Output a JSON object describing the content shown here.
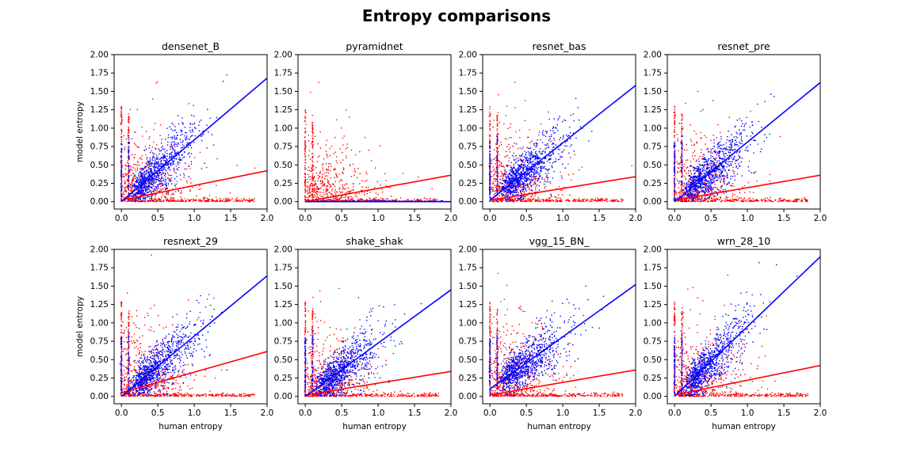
{
  "figure_title": "Entropy comparisons",
  "colors": {
    "series_a": "#0000ff",
    "series_b": "#ff0000",
    "axes": "#000000"
  },
  "chart_data": [
    {
      "type": "scatter",
      "title": "densenet_B",
      "xlabel": "",
      "ylabel": "model entropy",
      "xlim": [
        -0.1,
        2.0
      ],
      "ylim": [
        -0.1,
        2.0
      ],
      "xticks": [
        "0.0",
        "0.5",
        "1.0",
        "1.5",
        "2.0"
      ],
      "yticks": [
        "0.00",
        "0.25",
        "0.50",
        "0.75",
        "1.00",
        "1.25",
        "1.50",
        "1.75",
        "2.00"
      ],
      "series": [
        {
          "color": "#0000ff",
          "fit_line": {
            "x": [
              0.0,
              2.0
            ],
            "y": [
              0.0,
              1.68
            ]
          }
        },
        {
          "color": "#ff0000",
          "fit_line": {
            "x": [
              0.0,
              2.0
            ],
            "y": [
              0.02,
              0.42
            ]
          }
        }
      ]
    },
    {
      "type": "scatter",
      "title": "pyramidnet",
      "xlabel": "",
      "ylabel": "",
      "xlim": [
        -0.1,
        2.0
      ],
      "ylim": [
        -0.1,
        2.0
      ],
      "xticks": [
        "0.0",
        "0.5",
        "1.0",
        "1.5",
        "2.0"
      ],
      "yticks": [
        "0.00",
        "0.25",
        "0.50",
        "0.75",
        "1.00",
        "1.25",
        "1.50",
        "1.75",
        "2.00"
      ],
      "series": [
        {
          "color": "#0000ff",
          "fit_line": {
            "x": [
              0.0,
              2.0
            ],
            "y": [
              0.0,
              0.0
            ]
          }
        },
        {
          "color": "#ff0000",
          "fit_line": {
            "x": [
              0.0,
              2.0
            ],
            "y": [
              0.0,
              0.36
            ]
          }
        }
      ]
    },
    {
      "type": "scatter",
      "title": "resnet_bas",
      "xlabel": "",
      "ylabel": "",
      "xlim": [
        -0.1,
        2.0
      ],
      "ylim": [
        -0.1,
        2.0
      ],
      "xticks": [
        "0.0",
        "0.5",
        "1.0",
        "1.5",
        "2.0"
      ],
      "yticks": [
        "0.00",
        "0.25",
        "0.50",
        "0.75",
        "1.00",
        "1.25",
        "1.50",
        "1.75",
        "2.00"
      ],
      "series": [
        {
          "color": "#0000ff",
          "fit_line": {
            "x": [
              0.0,
              2.0
            ],
            "y": [
              0.02,
              1.58
            ]
          }
        },
        {
          "color": "#ff0000",
          "fit_line": {
            "x": [
              0.0,
              2.0
            ],
            "y": [
              0.02,
              0.34
            ]
          }
        }
      ]
    },
    {
      "type": "scatter",
      "title": "resnet_pre",
      "xlabel": "",
      "ylabel": "",
      "xlim": [
        -0.1,
        2.0
      ],
      "ylim": [
        -0.1,
        2.0
      ],
      "xticks": [
        "0.0",
        "0.5",
        "1.0",
        "1.5",
        "2.0"
      ],
      "yticks": [
        "0.00",
        "0.25",
        "0.50",
        "0.75",
        "1.00",
        "1.25",
        "1.50",
        "1.75",
        "2.00"
      ],
      "series": [
        {
          "color": "#0000ff",
          "fit_line": {
            "x": [
              0.0,
              2.0
            ],
            "y": [
              0.0,
              1.62
            ]
          }
        },
        {
          "color": "#ff0000",
          "fit_line": {
            "x": [
              0.0,
              2.0
            ],
            "y": [
              0.02,
              0.36
            ]
          }
        }
      ]
    },
    {
      "type": "scatter",
      "title": "resnext_29",
      "xlabel": "human entropy",
      "ylabel": "model entropy",
      "xlim": [
        -0.1,
        2.0
      ],
      "ylim": [
        -0.1,
        2.0
      ],
      "xticks": [
        "0.0",
        "0.5",
        "1.0",
        "1.5",
        "2.0"
      ],
      "yticks": [
        "0.00",
        "0.25",
        "0.50",
        "0.75",
        "1.00",
        "1.25",
        "1.50",
        "1.75",
        "2.00"
      ],
      "series": [
        {
          "color": "#0000ff",
          "fit_line": {
            "x": [
              0.0,
              2.0
            ],
            "y": [
              0.0,
              1.64
            ]
          }
        },
        {
          "color": "#ff0000",
          "fit_line": {
            "x": [
              0.0,
              2.0
            ],
            "y": [
              0.05,
              0.61
            ]
          }
        }
      ]
    },
    {
      "type": "scatter",
      "title": "shake_shak",
      "xlabel": "human entropy",
      "ylabel": "",
      "xlim": [
        -0.1,
        2.0
      ],
      "ylim": [
        -0.1,
        2.0
      ],
      "xticks": [
        "0.0",
        "0.5",
        "1.0",
        "1.5",
        "2.0"
      ],
      "yticks": [
        "0.00",
        "0.25",
        "0.50",
        "0.75",
        "1.00",
        "1.25",
        "1.50",
        "1.75",
        "2.00"
      ],
      "series": [
        {
          "color": "#0000ff",
          "fit_line": {
            "x": [
              0.0,
              2.0
            ],
            "y": [
              0.0,
              1.45
            ]
          }
        },
        {
          "color": "#ff0000",
          "fit_line": {
            "x": [
              0.0,
              2.0
            ],
            "y": [
              0.02,
              0.34
            ]
          }
        }
      ]
    },
    {
      "type": "scatter",
      "title": "vgg_15_BN_",
      "xlabel": "human entropy",
      "ylabel": "",
      "xlim": [
        -0.1,
        2.0
      ],
      "ylim": [
        -0.1,
        2.0
      ],
      "xticks": [
        "0.0",
        "0.5",
        "1.0",
        "1.5",
        "2.0"
      ],
      "yticks": [
        "0.00",
        "0.25",
        "0.50",
        "0.75",
        "1.00",
        "1.25",
        "1.50",
        "1.75",
        "2.00"
      ],
      "series": [
        {
          "color": "#0000ff",
          "fit_line": {
            "x": [
              0.0,
              2.0
            ],
            "y": [
              0.1,
              1.52
            ]
          }
        },
        {
          "color": "#ff0000",
          "fit_line": {
            "x": [
              0.0,
              2.0
            ],
            "y": [
              0.02,
              0.36
            ]
          }
        }
      ]
    },
    {
      "type": "scatter",
      "title": "wrn_28_10",
      "xlabel": "human entropy",
      "ylabel": "",
      "xlim": [
        -0.1,
        2.0
      ],
      "ylim": [
        -0.1,
        2.0
      ],
      "xticks": [
        "0.0",
        "0.5",
        "1.0",
        "1.5",
        "2.0"
      ],
      "yticks": [
        "0.00",
        "0.25",
        "0.50",
        "0.75",
        "1.00",
        "1.25",
        "1.50",
        "1.75",
        "2.00"
      ],
      "series": [
        {
          "color": "#0000ff",
          "fit_line": {
            "x": [
              0.0,
              2.0
            ],
            "y": [
              0.0,
              1.9
            ]
          }
        },
        {
          "color": "#ff0000",
          "fit_line": {
            "x": [
              0.0,
              2.0
            ],
            "y": [
              0.02,
              0.42
            ]
          }
        }
      ]
    }
  ]
}
